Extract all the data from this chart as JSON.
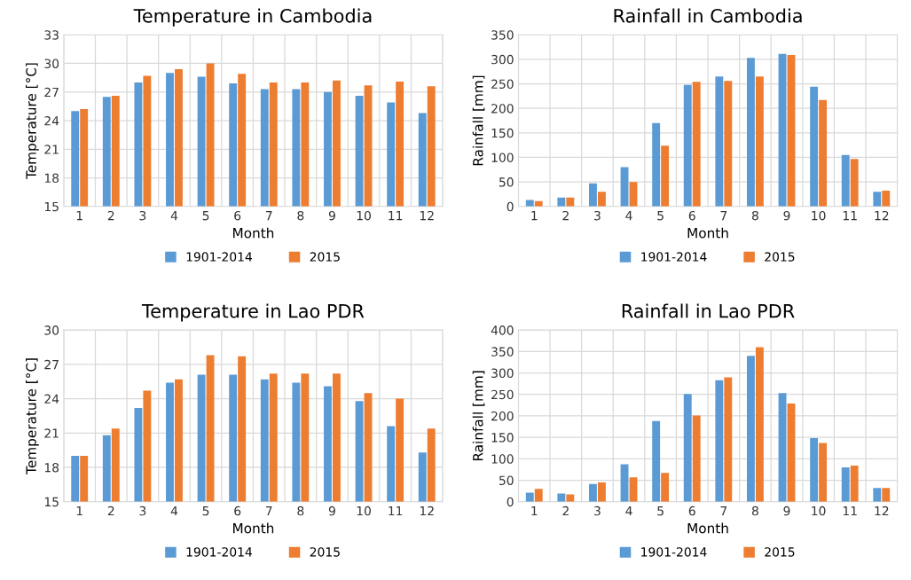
{
  "chart_data": [
    {
      "type": "bar",
      "title": "Temperature in Cambodia",
      "xlabel": "Month",
      "ylabel": "Temperature [°C]",
      "categories": [
        "1",
        "2",
        "3",
        "4",
        "5",
        "6",
        "7",
        "8",
        "9",
        "10",
        "11",
        "12"
      ],
      "ylim": [
        15,
        33
      ],
      "yticks": [
        15,
        18,
        21,
        24,
        27,
        30,
        33
      ],
      "grid": true,
      "legend": "bottom",
      "series": [
        {
          "name": "1901-2014",
          "color": "#5b9bd5",
          "values": [
            25.0,
            26.5,
            28.0,
            29.0,
            28.6,
            27.9,
            27.3,
            27.3,
            27.0,
            26.6,
            25.9,
            24.8
          ]
        },
        {
          "name": "2015",
          "color": "#ed7d31",
          "values": [
            25.2,
            26.6,
            28.7,
            29.4,
            30.0,
            28.9,
            28.0,
            28.0,
            28.2,
            27.7,
            28.1,
            27.6
          ]
        }
      ]
    },
    {
      "type": "bar",
      "title": "Rainfall in Cambodia",
      "xlabel": "Month",
      "ylabel": "Rainfall [mm]",
      "categories": [
        "1",
        "2",
        "3",
        "4",
        "5",
        "6",
        "7",
        "8",
        "9",
        "10",
        "11",
        "12"
      ],
      "ylim": [
        0,
        350
      ],
      "yticks": [
        0,
        50,
        100,
        150,
        200,
        250,
        300,
        350
      ],
      "grid": true,
      "legend": "bottom",
      "series": [
        {
          "name": "1901-2014",
          "color": "#5b9bd5",
          "values": [
            13,
            18,
            47,
            80,
            170,
            248,
            265,
            303,
            311,
            244,
            105,
            30
          ]
        },
        {
          "name": "2015",
          "color": "#ed7d31",
          "values": [
            11,
            18,
            30,
            50,
            124,
            254,
            256,
            265,
            309,
            217,
            97,
            32
          ]
        }
      ]
    },
    {
      "type": "bar",
      "title": "Temperature in Lao PDR",
      "xlabel": "Month",
      "ylabel": "Temperature [°C]",
      "categories": [
        "1",
        "2",
        "3",
        "4",
        "5",
        "6",
        "7",
        "8",
        "9",
        "10",
        "11",
        "12"
      ],
      "ylim": [
        15,
        30
      ],
      "yticks": [
        15,
        18,
        21,
        24,
        27,
        30
      ],
      "grid": true,
      "legend": "bottom",
      "series": [
        {
          "name": "1901-2014",
          "color": "#5b9bd5",
          "values": [
            19.0,
            20.8,
            23.2,
            25.4,
            26.1,
            26.1,
            25.7,
            25.4,
            25.1,
            23.8,
            21.6,
            19.3
          ]
        },
        {
          "name": "2015",
          "color": "#ed7d31",
          "values": [
            19.0,
            21.4,
            24.7,
            25.7,
            27.8,
            27.7,
            26.2,
            26.2,
            26.2,
            24.5,
            24.0,
            21.4
          ]
        }
      ]
    },
    {
      "type": "bar",
      "title": "Rainfall in Lao PDR",
      "xlabel": "Month",
      "ylabel": "Rainfall [mm]",
      "categories": [
        "1",
        "2",
        "3",
        "4",
        "5",
        "6",
        "7",
        "8",
        "9",
        "10",
        "11",
        "12"
      ],
      "ylim": [
        0,
        400
      ],
      "yticks": [
        0,
        50,
        100,
        150,
        200,
        250,
        300,
        350,
        400
      ],
      "grid": true,
      "legend": "bottom",
      "series": [
        {
          "name": "1901-2014",
          "color": "#5b9bd5",
          "values": [
            21,
            19,
            41,
            87,
            188,
            251,
            283,
            340,
            253,
            148,
            80,
            32
          ]
        },
        {
          "name": "2015",
          "color": "#ed7d31",
          "values": [
            30,
            17,
            45,
            57,
            67,
            201,
            290,
            360,
            229,
            137,
            84,
            32
          ]
        }
      ]
    }
  ]
}
